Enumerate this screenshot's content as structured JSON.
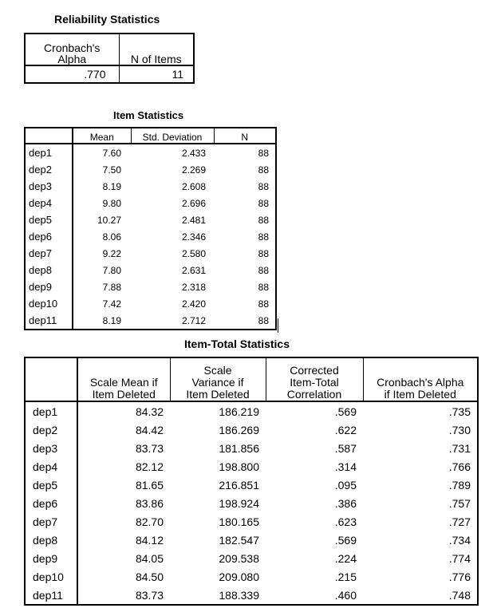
{
  "reliability": {
    "title": "Reliability Statistics",
    "headers": [
      "Cronbach's Alpha",
      "N of Items"
    ],
    "row": [
      ".770",
      "11"
    ]
  },
  "item_stats": {
    "title": "Item Statistics",
    "headers": [
      "",
      "Mean",
      "Std. Deviation",
      "N"
    ],
    "rows": [
      [
        "dep1",
        "7.60",
        "2.433",
        "88"
      ],
      [
        "dep2",
        "7.50",
        "2.269",
        "88"
      ],
      [
        "dep3",
        "8.19",
        "2.608",
        "88"
      ],
      [
        "dep4",
        "9.80",
        "2.696",
        "88"
      ],
      [
        "dep5",
        "10.27",
        "2.481",
        "88"
      ],
      [
        "dep6",
        "8.06",
        "2.346",
        "88"
      ],
      [
        "dep7",
        "9.22",
        "2.580",
        "88"
      ],
      [
        "dep8",
        "7.80",
        "2.631",
        "88"
      ],
      [
        "dep9",
        "7.88",
        "2.318",
        "88"
      ],
      [
        "dep10",
        "7.42",
        "2.420",
        "88"
      ],
      [
        "dep11",
        "8.19",
        "2.712",
        "88"
      ]
    ]
  },
  "item_total": {
    "title": "Item-Total Statistics",
    "headers": [
      "",
      "Scale Mean if Item Deleted",
      "Scale Variance if Item Deleted",
      "Corrected Item-Total Correlation",
      "Cronbach's Alpha if Item Deleted"
    ],
    "rows": [
      [
        "dep1",
        "84.32",
        "186.219",
        ".569",
        ".735"
      ],
      [
        "dep2",
        "84.42",
        "186.269",
        ".622",
        ".730"
      ],
      [
        "dep3",
        "83.73",
        "181.856",
        ".587",
        ".731"
      ],
      [
        "dep4",
        "82.12",
        "198.800",
        ".314",
        ".766"
      ],
      [
        "dep5",
        "81.65",
        "216.851",
        ".095",
        ".789"
      ],
      [
        "dep6",
        "83.86",
        "198.924",
        ".386",
        ".757"
      ],
      [
        "dep7",
        "82.70",
        "180.165",
        ".623",
        ".727"
      ],
      [
        "dep8",
        "84.12",
        "182.547",
        ".569",
        ".734"
      ],
      [
        "dep9",
        "84.05",
        "209.538",
        ".224",
        ".774"
      ],
      [
        "dep10",
        "84.50",
        "209.080",
        ".215",
        ".776"
      ],
      [
        "dep11",
        "83.73",
        "188.339",
        ".460",
        ".748"
      ]
    ]
  }
}
